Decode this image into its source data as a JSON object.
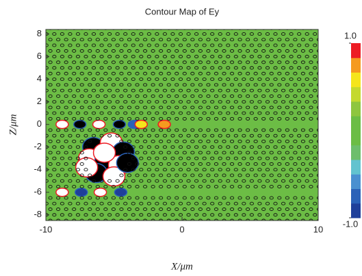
{
  "chart_data": {
    "type": "contour",
    "title": "Contour Map of Ey",
    "x_label": "X/μm",
    "y_label": "Z/μm",
    "xlim": [
      -10,
      10
    ],
    "xticks": [
      -10,
      0,
      10
    ],
    "ylim": [
      -8.5,
      8.4
    ],
    "yticks": [
      -8,
      -6,
      -4,
      -2,
      0,
      2,
      4,
      6,
      8
    ],
    "background_color": "#6cbd45",
    "clim": [
      -1,
      1
    ],
    "colorbar_ticks": [
      {
        "value": 1,
        "label": "1.0"
      },
      {
        "value": -1,
        "label": "-1.0"
      }
    ],
    "colormap": [
      "#1f3f9a",
      "#2b62b8",
      "#4a90d0",
      "#62c3cf",
      "#6dbe6c",
      "#6cbd45",
      "#6cbd45",
      "#8ec63f",
      "#c4d92e",
      "#f5e51b",
      "#f59a1f",
      "#ed1c24"
    ],
    "x": [
      -8.8,
      -7.5,
      -6.1,
      -4.6,
      -3.5,
      -3.0,
      -1.3,
      -8.8,
      -7.4,
      -6.0,
      -4.5,
      -6.5,
      -5.2,
      -4.3,
      -6.8,
      -5.6,
      -4.6,
      -6.3,
      -5.0,
      -5.7,
      -4.0,
      -7.0
    ],
    "y": [
      0,
      0,
      0,
      0,
      0,
      0,
      0,
      -6,
      -6,
      -6,
      -6,
      -2,
      -1.6,
      -2.4,
      -3.0,
      -3.2,
      -3.6,
      -4.3,
      -4.6,
      -2.5,
      -3.4,
      -3.8
    ],
    "values": [
      2,
      -2,
      2,
      -2,
      -0.7,
      0.5,
      0.8,
      2,
      -1,
      2,
      -1,
      -2,
      2,
      -2,
      2,
      -2,
      2,
      -2,
      2,
      2,
      -2,
      2
    ]
  }
}
